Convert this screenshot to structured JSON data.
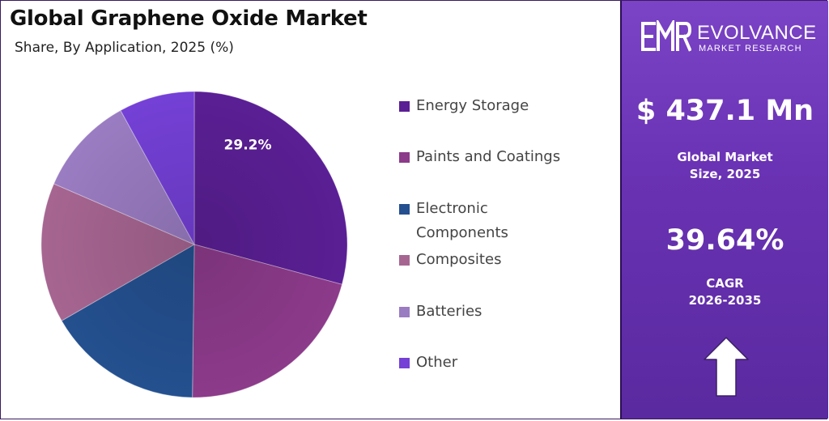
{
  "title": "Global Graphene Oxide Market",
  "subtitle": "Share, By Application, 2025 (%)",
  "brand": {
    "logo_mark": "EMR",
    "name": "EVOLVANCE",
    "tagline": "MARKET RESEARCH"
  },
  "stats": {
    "market_size_value": "$ 437.1 Mn",
    "market_size_label_line1": "Global Market",
    "market_size_label_line2": "Size, 2025",
    "cagr_value": "39.64%",
    "cagr_label_line1": "CAGR",
    "cagr_label_line2": "2026-2035"
  },
  "colors": {
    "panel_bg": "#6a32b4",
    "arrow": "#ffffff"
  },
  "chart_data": {
    "type": "pie",
    "title": "Global Graphene Oxide Market",
    "subtitle": "Share, By Application, 2025 (%)",
    "legend_position": "right",
    "start_angle_deg": 0,
    "direction": "clockwise",
    "slices": [
      {
        "label": "Energy Storage",
        "value": 29.2,
        "data_label": "29.2%",
        "color": "#5a1f94"
      },
      {
        "label": "Paints and Coatings",
        "value": 21.0,
        "data_label": "",
        "color": "#8c3a8a"
      },
      {
        "label": "Electronic Components",
        "value": 16.5,
        "data_label": "",
        "color": "#24508f"
      },
      {
        "label": "Composites",
        "value": 14.8,
        "data_label": "",
        "color": "#a66591"
      },
      {
        "label": "Batteries",
        "value": 10.5,
        "data_label": "",
        "color": "#9a7cc2"
      },
      {
        "label": "Other",
        "value": 8.0,
        "data_label": "",
        "color": "#7440d6"
      }
    ]
  }
}
